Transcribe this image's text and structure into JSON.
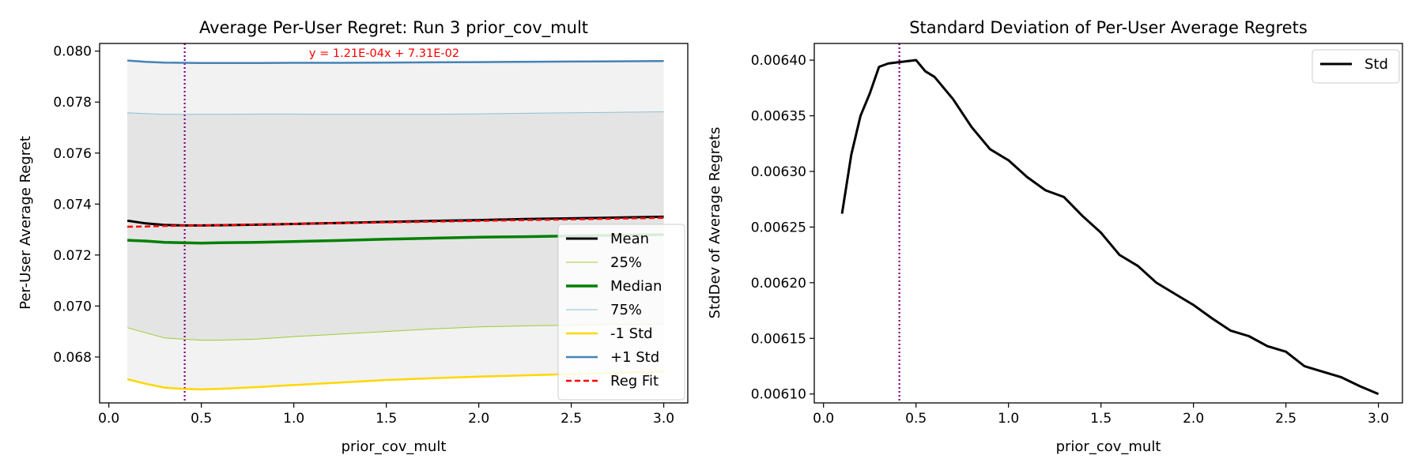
{
  "chart_data": [
    {
      "type": "line",
      "title": "Average Per-User Regret: Run 3 prior_cov_mult",
      "xlabel": "prior_cov_mult",
      "ylabel": "Per-User Average Regret",
      "xlim": [
        -0.05,
        3.13
      ],
      "ylim": [
        0.0662,
        0.0803
      ],
      "xticks": [
        "0.0",
        "0.5",
        "1.0",
        "1.5",
        "2.0",
        "2.5",
        "3.0"
      ],
      "xtick_values": [
        0.0,
        0.5,
        1.0,
        1.5,
        2.0,
        2.5,
        3.0
      ],
      "yticks": [
        "0.068",
        "0.070",
        "0.072",
        "0.074",
        "0.076",
        "0.078",
        "0.080"
      ],
      "ytick_values": [
        0.068,
        0.07,
        0.072,
        0.074,
        0.076,
        0.078,
        0.08
      ],
      "grid": false,
      "legend_position": "lower-right",
      "vline_x": 0.41,
      "annotation": "y = 1.21E-04x + 7.31E-02",
      "x": [
        0.1,
        0.2,
        0.3,
        0.4,
        0.5,
        0.6,
        0.8,
        1.0,
        1.25,
        1.5,
        1.75,
        2.0,
        2.25,
        2.5,
        2.75,
        3.0
      ],
      "series": [
        {
          "name": "Mean",
          "color": "#000000",
          "width": 3,
          "values": [
            0.07335,
            0.07324,
            0.07318,
            0.07316,
            0.07316,
            0.07317,
            0.07319,
            0.07322,
            0.07326,
            0.0733,
            0.07334,
            0.07337,
            0.07341,
            0.07344,
            0.07347,
            0.0735
          ]
        },
        {
          "name": "25%",
          "color": "#9acd32",
          "width": 1,
          "values": [
            0.06915,
            0.06895,
            0.06875,
            0.0687,
            0.06866,
            0.06866,
            0.0687,
            0.0688,
            0.0689,
            0.069,
            0.0691,
            0.06918,
            0.06922,
            0.06925,
            0.06928,
            0.0693
          ]
        },
        {
          "name": "Median",
          "color": "#008000",
          "width": 3.5,
          "values": [
            0.07258,
            0.07255,
            0.0725,
            0.07248,
            0.07247,
            0.07248,
            0.0725,
            0.07253,
            0.07257,
            0.07262,
            0.07266,
            0.0727,
            0.07272,
            0.07275,
            0.07278,
            0.0728
          ]
        },
        {
          "name": "75%",
          "color": "#8ec0d8",
          "width": 1,
          "values": [
            0.07758,
            0.07755,
            0.07752,
            0.07752,
            0.07752,
            0.07752,
            0.07753,
            0.07753,
            0.07752,
            0.07752,
            0.07752,
            0.07754,
            0.07756,
            0.07758,
            0.0776,
            0.07762
          ]
        },
        {
          "name": "-1 Std",
          "color": "#ffd700",
          "width": 2.5,
          "values": [
            0.06713,
            0.06695,
            0.0668,
            0.06675,
            0.06673,
            0.06675,
            0.06682,
            0.0669,
            0.067,
            0.0671,
            0.06717,
            0.06723,
            0.06728,
            0.06733,
            0.06738,
            0.06742
          ]
        },
        {
          "name": "+1 Std",
          "color": "#4682b4",
          "width": 2.5,
          "values": [
            0.07963,
            0.07958,
            0.07955,
            0.07954,
            0.07953,
            0.07953,
            0.07953,
            0.07954,
            0.07954,
            0.07955,
            0.07956,
            0.07957,
            0.07958,
            0.07959,
            0.0796,
            0.07961
          ]
        },
        {
          "name": "Reg Fit",
          "color": "#ff0000",
          "width": 2.5,
          "dash": "7,4",
          "values": [
            0.07311,
            0.07312,
            0.07314,
            0.07315,
            0.07316,
            0.07317,
            0.0732,
            0.07322,
            0.07325,
            0.07328,
            0.07331,
            0.07334,
            0.07337,
            0.0734,
            0.07343,
            0.07346
          ]
        }
      ]
    },
    {
      "type": "line",
      "title": "Standard Deviation of Per-User Average Regrets",
      "xlabel": "prior_cov_mult",
      "ylabel": "StdDev of Average Regrets",
      "xlim": [
        -0.05,
        3.13
      ],
      "ylim": [
        0.006092,
        0.006415
      ],
      "xticks": [
        "0.0",
        "0.5",
        "1.0",
        "1.5",
        "2.0",
        "2.5",
        "3.0"
      ],
      "xtick_values": [
        0.0,
        0.5,
        1.0,
        1.5,
        2.0,
        2.5,
        3.0
      ],
      "yticks": [
        "0.00610",
        "0.00615",
        "0.00620",
        "0.00625",
        "0.00630",
        "0.00635",
        "0.00640"
      ],
      "ytick_values": [
        0.0061,
        0.00615,
        0.0062,
        0.00625,
        0.0063,
        0.00635,
        0.0064
      ],
      "grid": false,
      "legend_position": "top-right",
      "vline_x": 0.41,
      "x": [
        0.1,
        0.15,
        0.2,
        0.25,
        0.3,
        0.35,
        0.4,
        0.45,
        0.5,
        0.55,
        0.6,
        0.7,
        0.8,
        0.9,
        1.0,
        1.1,
        1.2,
        1.3,
        1.4,
        1.5,
        1.6,
        1.7,
        1.8,
        1.9,
        2.0,
        2.1,
        2.2,
        2.3,
        2.4,
        2.5,
        2.6,
        2.7,
        2.8,
        2.9,
        3.0
      ],
      "series": [
        {
          "name": "Std",
          "color": "#000000",
          "width": 3,
          "values": [
            0.006262,
            0.006315,
            0.00635,
            0.00637,
            0.006394,
            0.006397,
            0.006398,
            0.006399,
            0.0064,
            0.00639,
            0.006385,
            0.006365,
            0.00634,
            0.00632,
            0.00631,
            0.006295,
            0.006283,
            0.006277,
            0.00626,
            0.006245,
            0.006225,
            0.006215,
            0.0062,
            0.00619,
            0.00618,
            0.006168,
            0.006157,
            0.006152,
            0.006143,
            0.006138,
            0.006125,
            0.00612,
            0.006115,
            0.006107,
            0.0061
          ]
        }
      ]
    }
  ]
}
